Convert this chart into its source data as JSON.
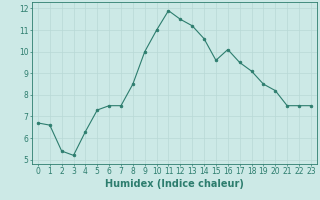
{
  "x": [
    0,
    1,
    2,
    3,
    4,
    5,
    6,
    7,
    8,
    9,
    10,
    11,
    12,
    13,
    14,
    15,
    16,
    17,
    18,
    19,
    20,
    21,
    22,
    23
  ],
  "y": [
    6.7,
    6.6,
    5.4,
    5.2,
    6.3,
    7.3,
    7.5,
    7.5,
    8.5,
    10.0,
    11.0,
    11.9,
    11.5,
    11.2,
    10.6,
    9.6,
    10.1,
    9.5,
    9.1,
    8.5,
    8.2,
    7.5,
    7.5,
    7.5
  ],
  "xlabel": "Humidex (Indice chaleur)",
  "ylabel": "",
  "xlim": [
    -0.5,
    23.5
  ],
  "ylim": [
    4.8,
    12.3
  ],
  "yticks": [
    5,
    6,
    7,
    8,
    9,
    10,
    11,
    12
  ],
  "xticks": [
    0,
    1,
    2,
    3,
    4,
    5,
    6,
    7,
    8,
    9,
    10,
    11,
    12,
    13,
    14,
    15,
    16,
    17,
    18,
    19,
    20,
    21,
    22,
    23
  ],
  "line_color": "#2d7d6e",
  "marker_color": "#2d7d6e",
  "bg_color": "#cce9e6",
  "grid_color": "#b8d9d6",
  "border_color": "#2d7d6e",
  "tick_label_fontsize": 5.5,
  "xlabel_fontsize": 7.0
}
